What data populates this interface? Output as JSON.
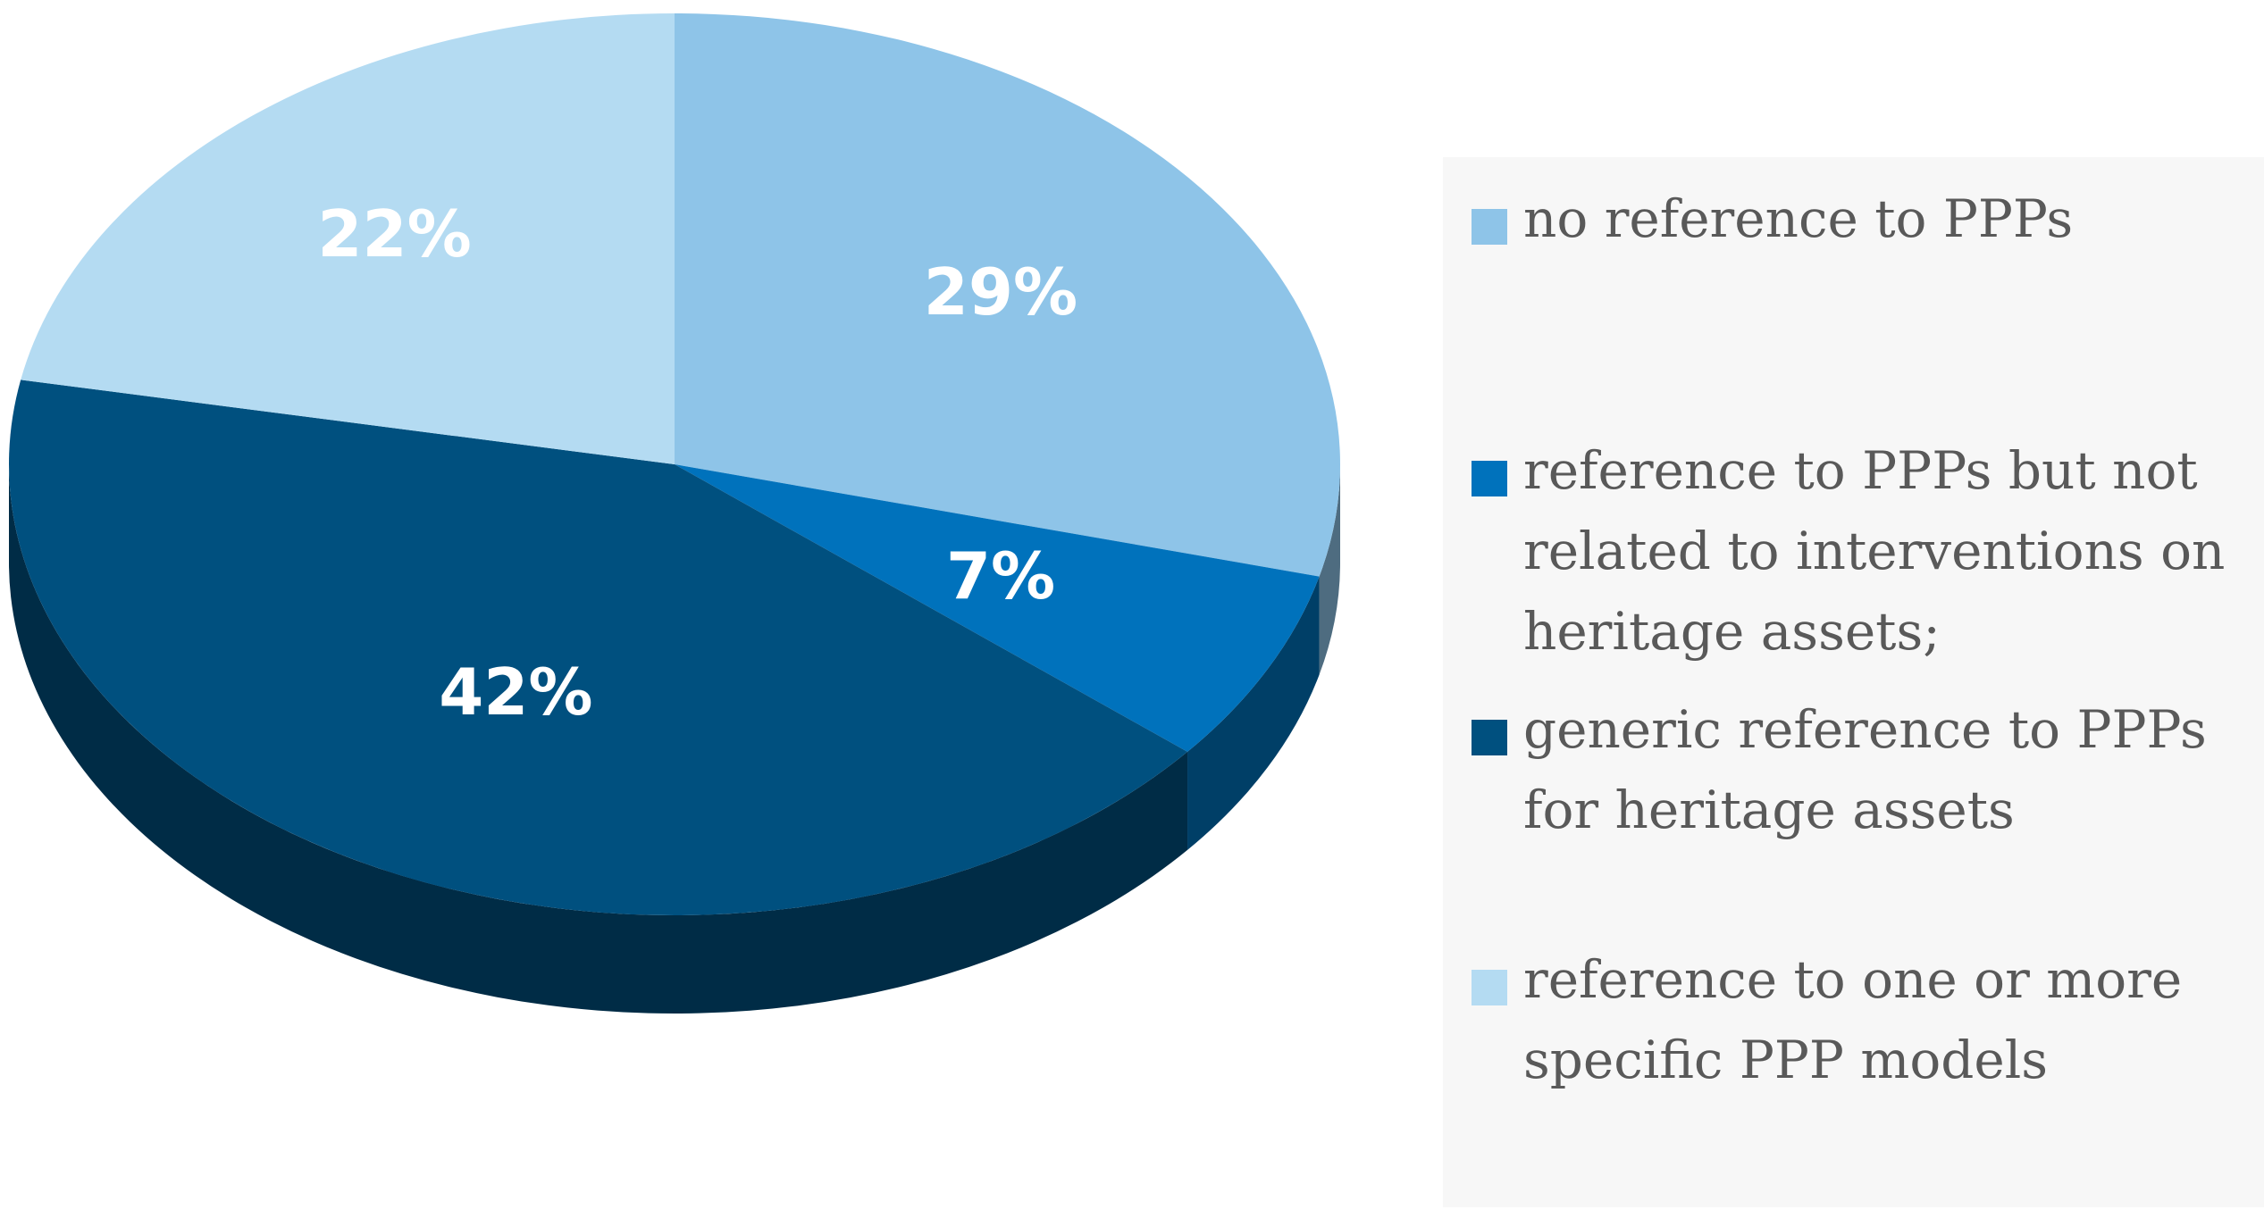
{
  "chart_data": {
    "type": "pie",
    "title": "",
    "style": "3d",
    "slices": [
      {
        "label": "no reference to PPPs",
        "value": 29,
        "display": "29%",
        "color": "#8ec4e8"
      },
      {
        "label": "reference to PPPs but not related to interventions on heritage assets;",
        "value": 7,
        "display": "7%",
        "color": "#0072bc"
      },
      {
        "label": "generic reference to PPPs for heritage assets",
        "value": 42,
        "display": "42%",
        "color": "#00507f"
      },
      {
        "label": "reference to one or more specific PPP models",
        "value": 22,
        "display": "22%",
        "color": "#b4dbf2"
      }
    ],
    "legend_position": "right"
  }
}
